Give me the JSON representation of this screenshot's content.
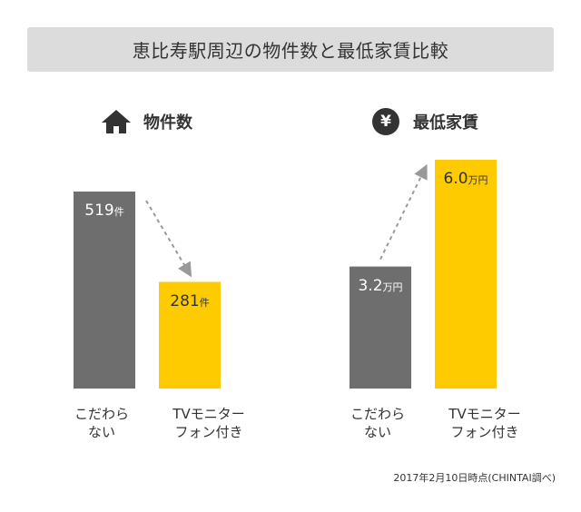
{
  "title": "恵比寿駅周辺の物件数と最低家賃比較",
  "footnote": "2017年2月10日時点(CHINTAI調べ)",
  "panels": {
    "left": {
      "heading": "物件数",
      "icon": "house-icon"
    },
    "right": {
      "heading": "最低家賃",
      "icon": "yen-icon",
      "icon_glyph": "¥"
    }
  },
  "categories": [
    "こだわらない",
    "TVモニターフォン付き"
  ],
  "category_lines": [
    [
      "こだわら",
      "ない"
    ],
    [
      "TVモニター",
      "フォン付き"
    ]
  ],
  "colors": {
    "gray": "#6e6e6e",
    "yellow": "#fecb00",
    "text": "#333333",
    "title_bg": "#dcdcdc",
    "arrow": "#999999"
  },
  "chart_data": [
    {
      "type": "bar",
      "title": "物件数",
      "categories": [
        "こだわらない",
        "TVモニターフォン付き"
      ],
      "values": [
        519,
        281
      ],
      "unit": "件",
      "labels": [
        "519件",
        "281件"
      ],
      "ylim": [
        0,
        519
      ]
    },
    {
      "type": "bar",
      "title": "最低家賃",
      "categories": [
        "こだわらない",
        "TVモニターフォン付き"
      ],
      "values": [
        3.2,
        6.0
      ],
      "unit": "万円",
      "labels": [
        "3.2万円",
        "6.0万円"
      ],
      "ylim": [
        0,
        6.0
      ]
    }
  ]
}
